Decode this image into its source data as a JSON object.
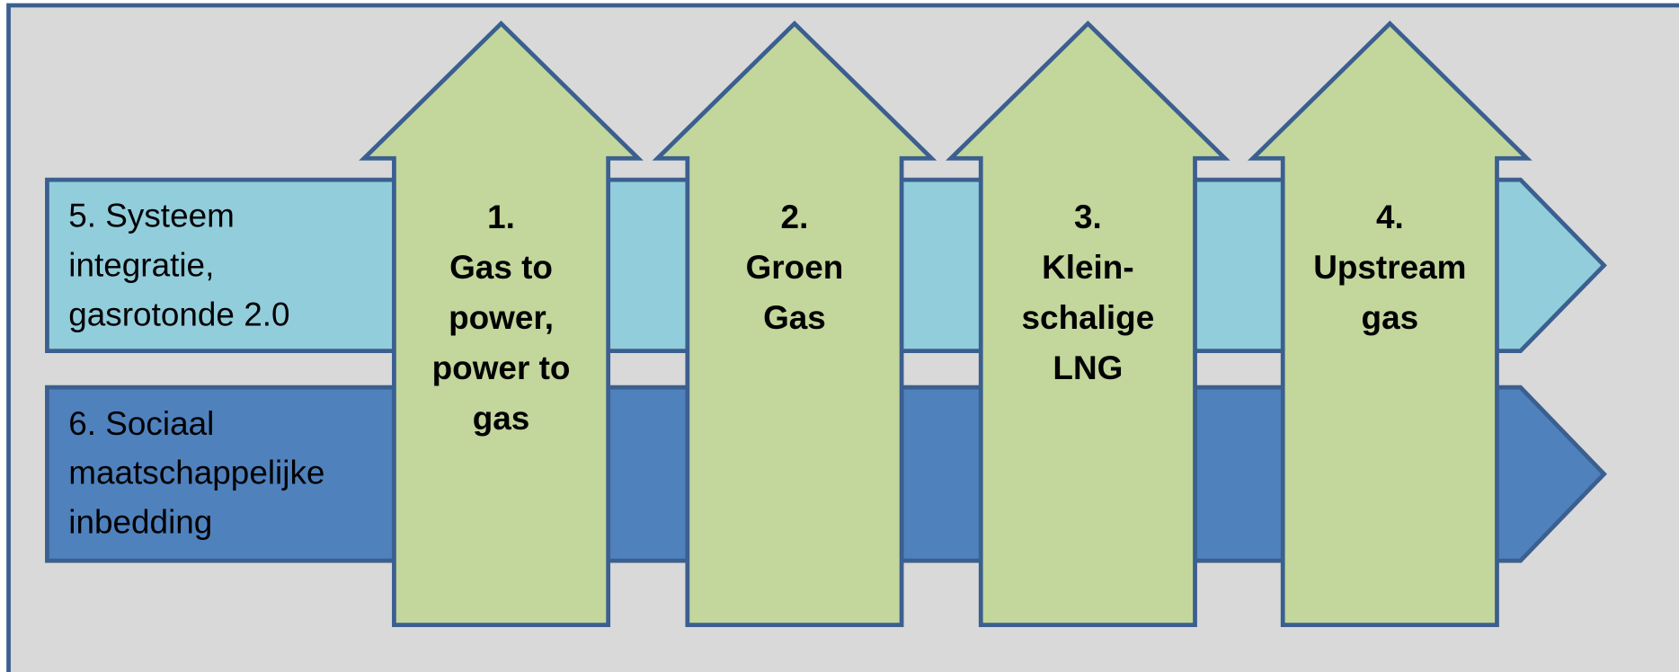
{
  "rows": [
    {
      "lines": [
        "5. Systeem",
        "integratie,",
        "gasrotonde 2.0"
      ]
    },
    {
      "lines": [
        "6. Sociaal",
        "maatschappelijke",
        "inbedding"
      ]
    }
  ],
  "arrows": [
    {
      "lines": [
        "1.",
        "Gas to",
        "power,",
        "power to",
        "gas"
      ]
    },
    {
      "lines": [
        "2.",
        "Groen",
        "Gas"
      ]
    },
    {
      "lines": [
        "3.",
        "Klein-",
        "schalige",
        "LNG"
      ]
    },
    {
      "lines": [
        "4.",
        "Upstream",
        "gas"
      ]
    }
  ]
}
